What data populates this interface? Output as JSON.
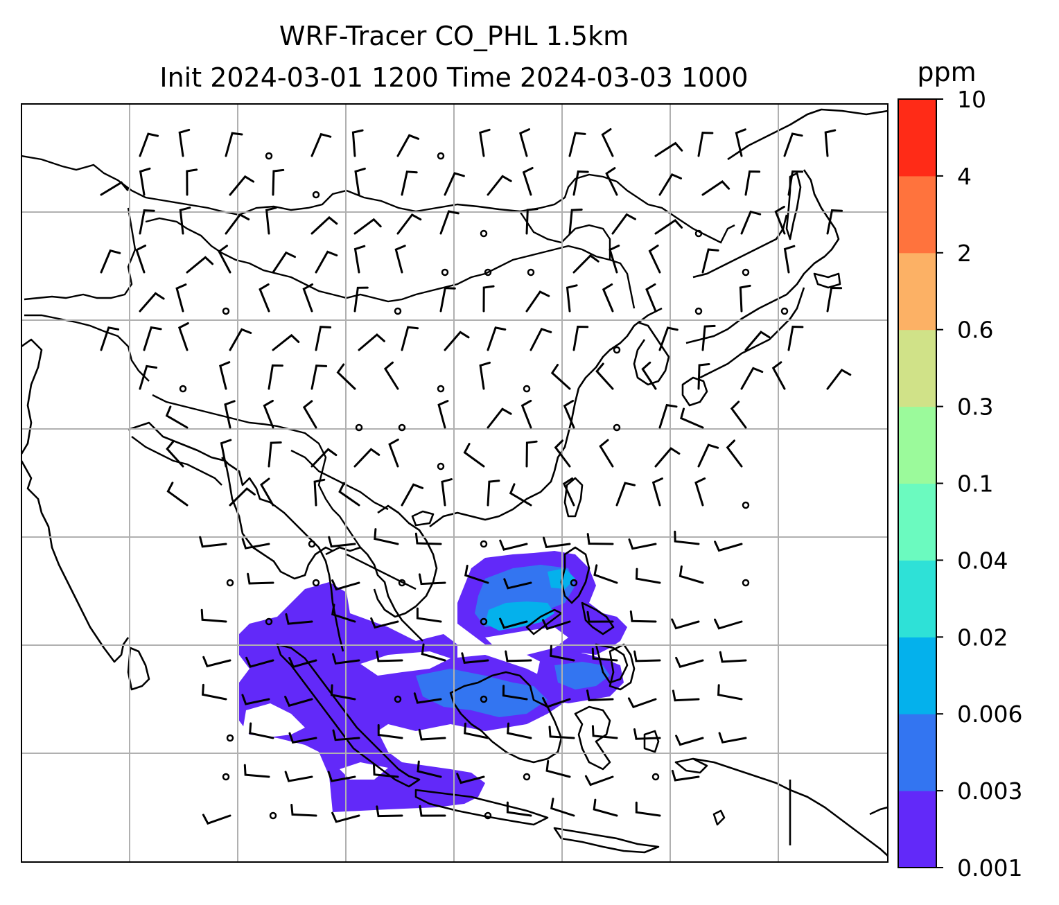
{
  "title": {
    "line1": "WRF-Tracer CO_PHL 1.5km",
    "line2": "Init 2024-03-01 1200 Time 2024-03-03 1000"
  },
  "colorbar": {
    "unit": "ppm",
    "tick_labels": [
      "0.001",
      "0.003",
      "0.006",
      "0.02",
      "0.04",
      "0.1",
      "0.3",
      "0.6",
      "2",
      "4",
      "10"
    ],
    "colors": [
      "#6229f9",
      "#3375f1",
      "#04b1ec",
      "#2ee1d7",
      "#6bfabf",
      "#9bfa9b",
      "#d0e288",
      "#fcb165",
      "#ff733d",
      "#ff2b17"
    ]
  },
  "map": {
    "coastline_color": "#000000",
    "gridline_color": "#b0b0b0",
    "barb_color": "#000000",
    "grid": true
  }
}
